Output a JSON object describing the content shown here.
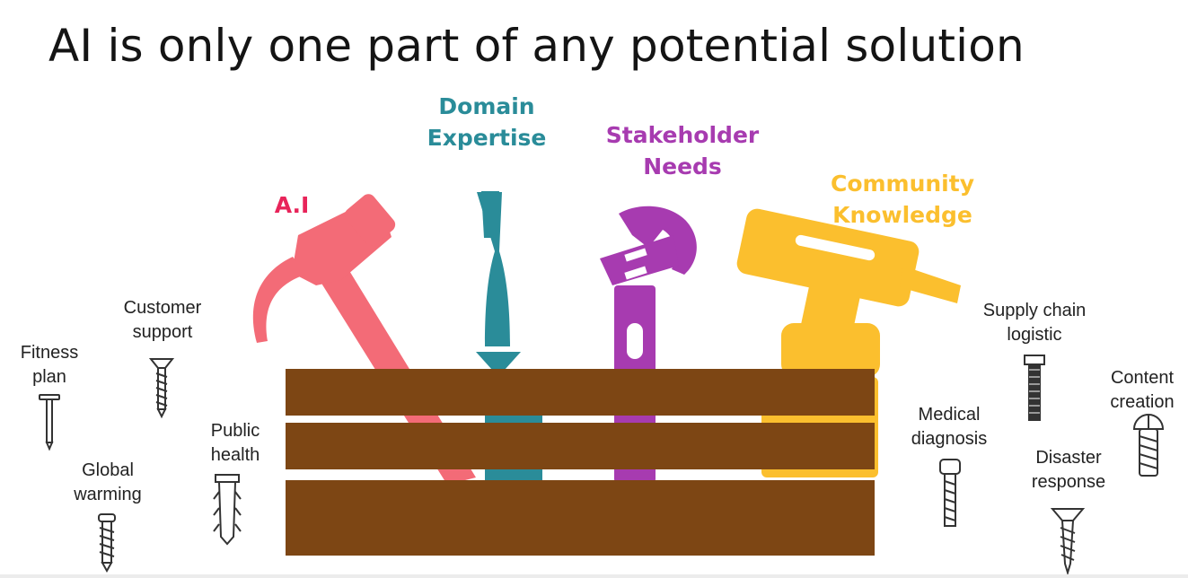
{
  "title": "AI is only one part of any potential solution",
  "tools": {
    "ai": {
      "label": "A.I",
      "color": "#ef6b75",
      "icon": "hammer-icon"
    },
    "domain": {
      "label": "Domain\nExpertise",
      "color": "#2a8c99",
      "icon": "screwdriver-icon"
    },
    "stakeholder": {
      "label": "Stakeholder\nNeeds",
      "color": "#a73bb0",
      "icon": "wrench-icon"
    },
    "community": {
      "label": "Community\nKnowledge",
      "color": "#fbbf2e",
      "icon": "drill-icon"
    }
  },
  "box_color": "#7d4614",
  "fasteners": {
    "fitness": "Fitness\nplan",
    "customer": "Customer\nsupport",
    "global": "Global\nwarming",
    "public": "Public\nhealth",
    "medical": "Medical\ndiagnosis",
    "supply": "Supply chain\nlogistic",
    "disaster": "Disaster\nresponse",
    "content": "Content\ncreation"
  }
}
